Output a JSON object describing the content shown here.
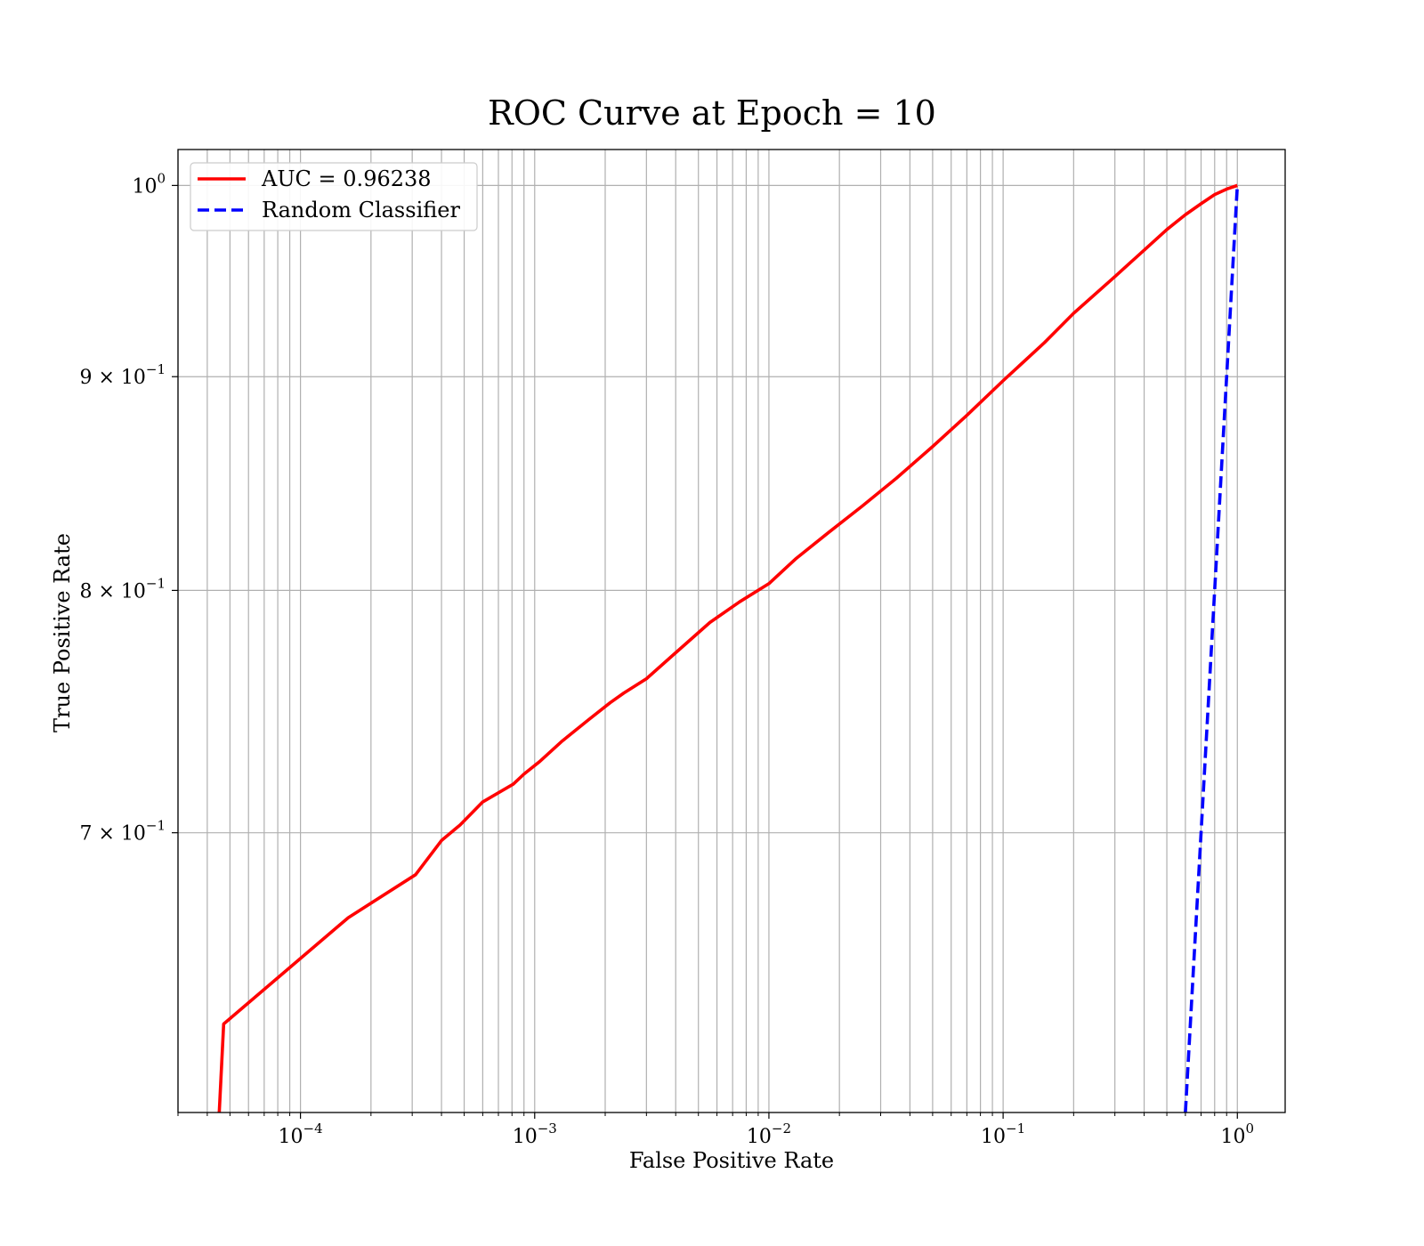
{
  "chart_data": {
    "type": "line",
    "title": "ROC Curve at Epoch = 10",
    "xlabel": "False Positive Rate",
    "ylabel": "True Positive Rate",
    "xscale": "log",
    "yscale": "log",
    "xlim": [
      3e-05,
      1.6
    ],
    "ylim": [
      0.6,
      1.02
    ],
    "grid": true,
    "legend_position": "top-left",
    "x_ticks": [
      {
        "value": 0.0001,
        "label": "10",
        "exp": "−4"
      },
      {
        "value": 0.001,
        "label": "10",
        "exp": "−3"
      },
      {
        "value": 0.01,
        "label": "10",
        "exp": "−2"
      },
      {
        "value": 0.1,
        "label": "10",
        "exp": "−1"
      },
      {
        "value": 1,
        "label": "10",
        "exp": "0"
      }
    ],
    "y_ticks": [
      {
        "value": 0.7,
        "label": "7 × 10",
        "exp": "−1"
      },
      {
        "value": 0.8,
        "label": "8 × 10",
        "exp": "−1"
      },
      {
        "value": 0.9,
        "label": "9 × 10",
        "exp": "−1"
      },
      {
        "value": 1.0,
        "label": "10",
        "exp": "0"
      }
    ],
    "series": [
      {
        "name": "AUC = 0.96238",
        "color": "#ff0000",
        "style": "solid",
        "x": [
          4.5e-05,
          4.7e-05,
          0.00016,
          0.00031,
          0.0004,
          0.00048,
          0.0006,
          0.00081,
          0.0009,
          0.00105,
          0.0013,
          0.0017,
          0.0021,
          0.0024,
          0.003,
          0.004,
          0.0056,
          0.0075,
          0.01,
          0.013,
          0.018,
          0.025,
          0.035,
          0.05,
          0.07,
          0.1,
          0.15,
          0.2,
          0.3,
          0.4,
          0.5,
          0.6,
          0.7,
          0.8,
          0.9,
          1.0
        ],
        "y": [
          0.6,
          0.63,
          0.668,
          0.684,
          0.697,
          0.703,
          0.712,
          0.719,
          0.723,
          0.728,
          0.736,
          0.745,
          0.752,
          0.756,
          0.762,
          0.773,
          0.786,
          0.795,
          0.803,
          0.814,
          0.826,
          0.838,
          0.851,
          0.866,
          0.881,
          0.898,
          0.917,
          0.932,
          0.951,
          0.965,
          0.976,
          0.984,
          0.99,
          0.995,
          0.998,
          1.0
        ]
      },
      {
        "name": "Random Classifier",
        "color": "#0000ff",
        "style": "dashed",
        "x": [
          0.6,
          1.0
        ],
        "y": [
          0.6,
          1.0
        ]
      }
    ]
  }
}
